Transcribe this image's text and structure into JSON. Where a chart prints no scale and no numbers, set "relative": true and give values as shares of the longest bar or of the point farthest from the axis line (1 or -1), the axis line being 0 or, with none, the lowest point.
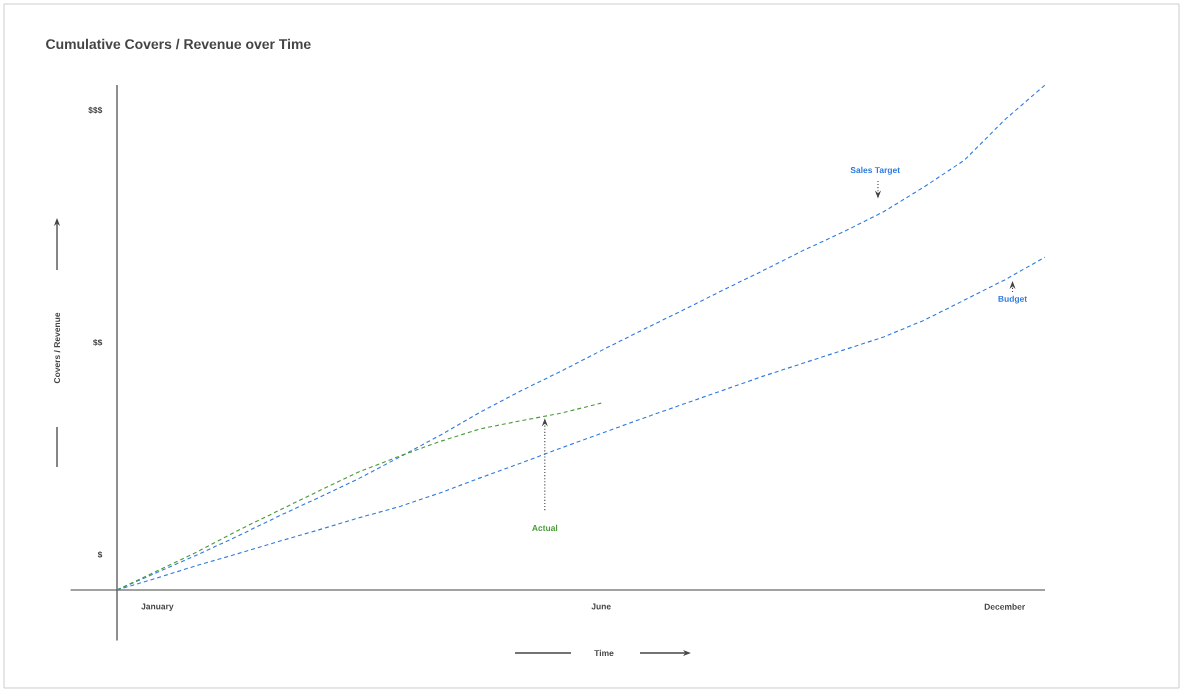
{
  "chart_data": {
    "type": "line",
    "title": "Cumulative Covers / Revenue over Time",
    "xlabel": "Time",
    "ylabel": "Covers / Revenue",
    "relative": true,
    "categories": [
      null,
      "January",
      null,
      null,
      null,
      null,
      null,
      null,
      null,
      null,
      null,
      null,
      "June",
      null,
      null,
      null,
      null,
      null,
      null,
      null,
      null,
      null,
      "December",
      null
    ],
    "series": [
      {
        "name": "Sales Target",
        "color": "#2f7be0",
        "values": [
          0,
          0.035,
          0.07,
          0.107,
          0.146,
          0.183,
          0.221,
          0.263,
          0.306,
          0.352,
          0.394,
          0.433,
          0.474,
          0.514,
          0.553,
          0.593,
          0.632,
          0.672,
          0.709,
          0.749,
          0.798,
          0.851,
          0.931,
          1
        ]
      },
      {
        "name": "Budget",
        "color": "#2f7be0",
        "values": [
          0,
          0.024,
          0.049,
          0.072,
          0.096,
          0.119,
          0.143,
          0.165,
          0.192,
          0.222,
          0.251,
          0.281,
          0.31,
          0.339,
          0.367,
          0.395,
          0.423,
          0.449,
          0.475,
          0.501,
          0.534,
          0.574,
          0.614,
          0.659
        ]
      },
      {
        "name": "Actual",
        "color": "#4a9a3a",
        "values": [
          0,
          0.038,
          0.076,
          0.118,
          0.157,
          0.196,
          0.234,
          0.265,
          0.294,
          0.319,
          0.335,
          0.35,
          0.37,
          null,
          null,
          null,
          null,
          null,
          null,
          null,
          null,
          null,
          null,
          null
        ]
      }
    ],
    "annotations": [
      "$",
      "$$",
      "$$$"
    ],
    "line_style": "dashed",
    "marker": "none"
  }
}
